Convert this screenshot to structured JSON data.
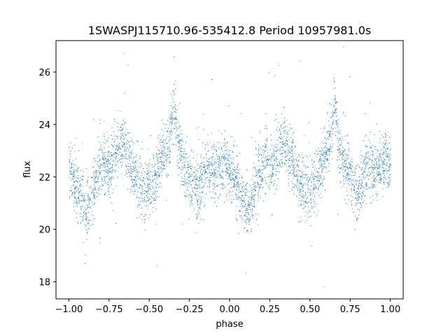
{
  "chart_data": {
    "type": "scatter",
    "title": "1SWASPJ115710.96-535412.8 Period 10957981.0s",
    "xlabel": "phase",
    "ylabel": "flux",
    "xlim": [
      -1.08,
      1.08
    ],
    "ylim": [
      17.35,
      27.2
    ],
    "x_ticks": [
      -1.0,
      -0.75,
      -0.5,
      -0.25,
      0.0,
      0.25,
      0.5,
      0.75,
      1.0
    ],
    "x_tick_labels": [
      "−1.00",
      "−0.75",
      "−0.50",
      "−0.25",
      "0.00",
      "0.25",
      "0.50",
      "0.75",
      "1.00"
    ],
    "y_ticks": [
      18,
      20,
      22,
      24,
      26
    ],
    "y_tick_labels": [
      "18",
      "20",
      "22",
      "24",
      "26"
    ],
    "grid": false,
    "legend": "none",
    "point_color": "#1f77b4",
    "trend": {
      "phase": [
        0.0,
        0.03,
        0.06,
        0.09,
        0.12,
        0.15,
        0.18,
        0.22,
        0.26,
        0.3,
        0.34,
        0.38,
        0.42,
        0.46,
        0.5,
        0.54,
        0.58,
        0.62,
        0.65,
        0.68,
        0.72,
        0.76,
        0.8,
        0.84,
        0.88,
        0.92,
        0.96,
        1.0
      ],
      "flux": [
        22.3,
        22.0,
        21.4,
        20.9,
        20.6,
        21.5,
        22.2,
        22.5,
        22.4,
        23.0,
        23.4,
        22.6,
        22.0,
        21.5,
        21.6,
        22.0,
        22.7,
        23.3,
        24.8,
        23.2,
        22.3,
        21.9,
        21.5,
        22.2,
        22.3,
        22.2,
        22.6,
        22.4
      ]
    }
  }
}
